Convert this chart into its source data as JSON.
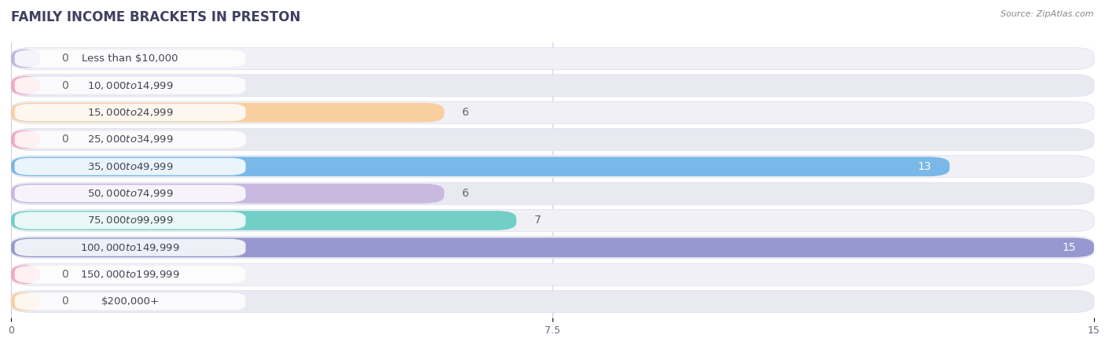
{
  "title": "FAMILY INCOME BRACKETS IN PRESTON",
  "source_text": "Source: ZipAtlas.com",
  "categories": [
    "Less than $10,000",
    "$10,000 to $14,999",
    "$15,000 to $24,999",
    "$25,000 to $34,999",
    "$35,000 to $49,999",
    "$50,000 to $74,999",
    "$75,000 to $99,999",
    "$100,000 to $149,999",
    "$150,000 to $199,999",
    "$200,000+"
  ],
  "values": [
    0,
    0,
    6,
    0,
    13,
    6,
    7,
    15,
    0,
    0
  ],
  "bar_colors": [
    "#b8b8e0",
    "#f5a8bc",
    "#f9cfa0",
    "#f5a8bc",
    "#79b8e8",
    "#c9b8e0",
    "#72cfc8",
    "#9898d0",
    "#f5a8bc",
    "#f9cfa0"
  ],
  "xlim": [
    0,
    15
  ],
  "xticks": [
    0,
    7.5,
    15
  ],
  "background_color": "#ffffff",
  "row_bg_color_odd": "#f0f0f5",
  "row_bg_color_even": "#e8e8f0",
  "label_fontsize": 10,
  "title_fontsize": 12,
  "title_color": "#404060",
  "value_label_color_inside": "#ffffff",
  "value_label_color_outside": "#666666",
  "source_color": "#888888"
}
